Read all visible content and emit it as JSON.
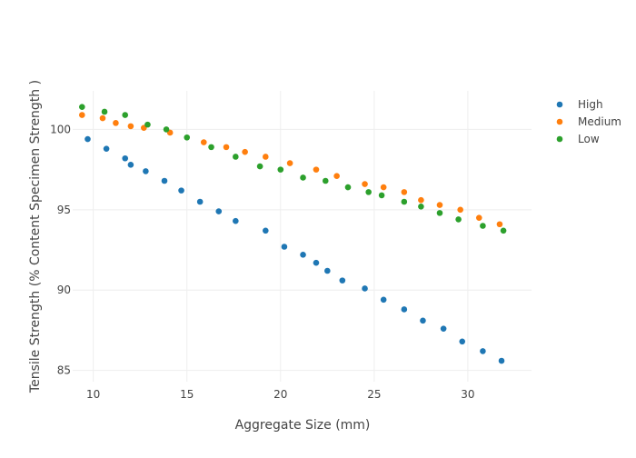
{
  "chart_data": {
    "type": "scatter",
    "xlabel": "Aggregate Size (mm)",
    "ylabel": "Tensile Strength (% Content Specimen Strength )",
    "xlim": [
      8.9,
      33.4
    ],
    "ylim": [
      84.3,
      102.4
    ],
    "x_ticks": [
      10,
      15,
      20,
      25,
      30
    ],
    "y_ticks": [
      85,
      90,
      95,
      100
    ],
    "grid": true,
    "legend_position": "top-right",
    "series": [
      {
        "name": "High",
        "color": "#1f77b4",
        "x": [
          9.7,
          10.7,
          11.7,
          12.0,
          12.8,
          13.8,
          14.7,
          15.7,
          16.7,
          17.6,
          19.2,
          20.2,
          21.2,
          21.9,
          22.5,
          23.3,
          24.5,
          25.5,
          26.6,
          27.6,
          28.7,
          29.7,
          30.8,
          31.8
        ],
        "y": [
          99.4,
          98.8,
          98.2,
          97.8,
          97.4,
          96.8,
          96.2,
          95.5,
          94.9,
          94.3,
          93.7,
          92.7,
          92.2,
          91.7,
          91.2,
          90.6,
          90.1,
          89.4,
          88.8,
          88.1,
          87.6,
          86.8,
          86.2,
          85.6
        ]
      },
      {
        "name": "Medium",
        "color": "#ff7f0e",
        "x": [
          9.4,
          10.5,
          11.2,
          12.0,
          12.7,
          14.1,
          15.9,
          17.1,
          18.1,
          19.2,
          20.5,
          21.9,
          23.0,
          24.5,
          25.5,
          26.6,
          27.5,
          28.5,
          29.6,
          30.6,
          31.7
        ],
        "y": [
          100.9,
          100.7,
          100.4,
          100.2,
          100.1,
          99.8,
          99.2,
          98.9,
          98.6,
          98.3,
          97.9,
          97.5,
          97.1,
          96.6,
          96.4,
          96.1,
          95.6,
          95.3,
          95.0,
          94.5,
          94.1
        ]
      },
      {
        "name": "Low",
        "color": "#2ca02c",
        "x": [
          9.4,
          10.6,
          11.7,
          12.9,
          13.9,
          15.0,
          16.3,
          17.6,
          18.9,
          20.0,
          21.2,
          22.4,
          23.6,
          24.7,
          25.4,
          26.6,
          27.5,
          28.5,
          29.5,
          30.8,
          31.9
        ],
        "y": [
          101.4,
          101.1,
          100.9,
          100.3,
          100.0,
          99.5,
          98.9,
          98.3,
          97.7,
          97.5,
          97.0,
          96.8,
          96.4,
          96.1,
          95.9,
          95.5,
          95.2,
          94.8,
          94.4,
          94.0,
          93.7
        ]
      }
    ]
  }
}
